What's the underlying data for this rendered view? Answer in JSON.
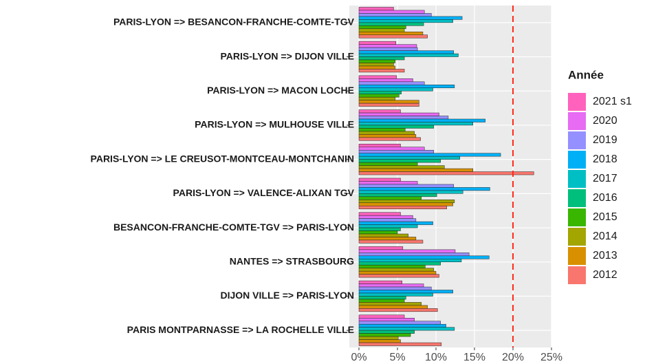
{
  "chart_data": {
    "type": "bar",
    "orientation": "horizontal",
    "legend_title": "Année",
    "legend_position": "right",
    "categories": [
      "PARIS-LYON => BESANCON-FRANCHE-COMTE-TGV",
      "PARIS-LYON => DIJON VILLE",
      "PARIS-LYON => MACON LOCHE",
      "PARIS-LYON => MULHOUSE VILLE",
      "PARIS-LYON => LE CREUSOT-MONTCEAU-MONTCHANIN",
      "PARIS-LYON => VALENCE-ALIXAN TGV",
      "BESANCON-FRANCHE-COMTE-TGV => PARIS-LYON",
      "NANTES => STRASBOURG",
      "DIJON VILLE => PARIS-LYON",
      "PARIS MONTPARNASSE => LA ROCHELLE VILLE"
    ],
    "series": [
      {
        "name": "2021 s1",
        "color": "#FF62BC",
        "values": [
          4.5,
          4.8,
          4.9,
          5.4,
          5.4,
          5.4,
          5.4,
          5.7,
          5.6,
          5.9
        ]
      },
      {
        "name": "2020",
        "color": "#E76BF3",
        "values": [
          8.5,
          7.5,
          7.0,
          10.4,
          8.5,
          7.6,
          7.0,
          12.5,
          8.4,
          7.2
        ]
      },
      {
        "name": "2019",
        "color": "#9590FF",
        "values": [
          9.4,
          7.6,
          8.5,
          11.6,
          9.7,
          12.3,
          7.4,
          14.3,
          9.4,
          10.6
        ]
      },
      {
        "name": "2018",
        "color": "#00B0F6",
        "values": [
          13.4,
          12.3,
          12.4,
          16.4,
          18.4,
          17.0,
          9.6,
          16.9,
          12.2,
          11.3
        ]
      },
      {
        "name": "2017",
        "color": "#00BFC4",
        "values": [
          12.2,
          12.9,
          9.6,
          14.8,
          13.1,
          13.5,
          7.6,
          13.3,
          9.6,
          12.4
        ]
      },
      {
        "name": "2016",
        "color": "#00BF7D",
        "values": [
          8.4,
          5.9,
          5.5,
          9.7,
          10.6,
          10.1,
          5.4,
          10.6,
          6.1,
          7.2
        ]
      },
      {
        "name": "2015",
        "color": "#39B600",
        "values": [
          6.1,
          4.7,
          5.2,
          6.0,
          7.6,
          8.1,
          5.0,
          8.6,
          5.9,
          6.7
        ]
      },
      {
        "name": "2014",
        "color": "#A3A500",
        "values": [
          5.9,
          4.5,
          4.7,
          7.2,
          11.1,
          12.4,
          6.4,
          9.7,
          8.1,
          5.1
        ]
      },
      {
        "name": "2013",
        "color": "#D89000",
        "values": [
          8.3,
          4.7,
          7.8,
          7.4,
          14.8,
          12.2,
          7.4,
          10.0,
          8.9,
          5.4
        ]
      },
      {
        "name": "2012",
        "color": "#F8766D",
        "values": [
          8.9,
          5.9,
          7.8,
          8.0,
          22.7,
          11.4,
          8.3,
          10.4,
          10.2,
          10.7
        ]
      }
    ],
    "xlim": [
      0,
      25
    ],
    "xticks": [
      {
        "value": 0,
        "label": "0%"
      },
      {
        "value": 5,
        "label": "5%"
      },
      {
        "value": 10,
        "label": "10%"
      },
      {
        "value": 15,
        "label": "15%"
      },
      {
        "value": 20,
        "label": "20%"
      },
      {
        "value": 25,
        "label": "25%"
      }
    ],
    "grid": true,
    "reference_line": {
      "value": 20,
      "color": "#FF2A1A"
    }
  }
}
